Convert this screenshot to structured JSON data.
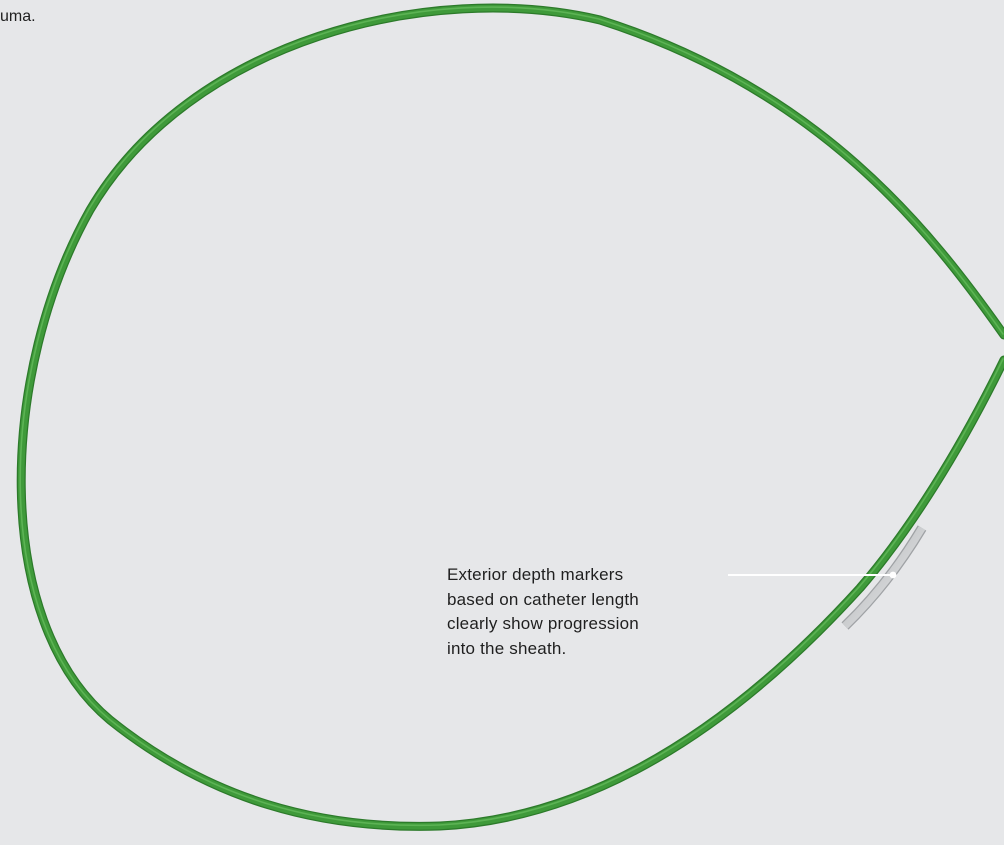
{
  "top_fragment": "uma.",
  "callout": {
    "lines": [
      "Exterior depth markers",
      "based on catheter length",
      "clearly show progression",
      "into the sheath."
    ]
  },
  "colors": {
    "background": "#e6e7e9",
    "catheter_green": "#3f9a3a",
    "catheter_dark": "#2c7a2a",
    "catheter_light": "#6cc063",
    "marker_band": "#d4d6d8",
    "leader_line": "#ffffff",
    "text": "#1f1f1f"
  }
}
